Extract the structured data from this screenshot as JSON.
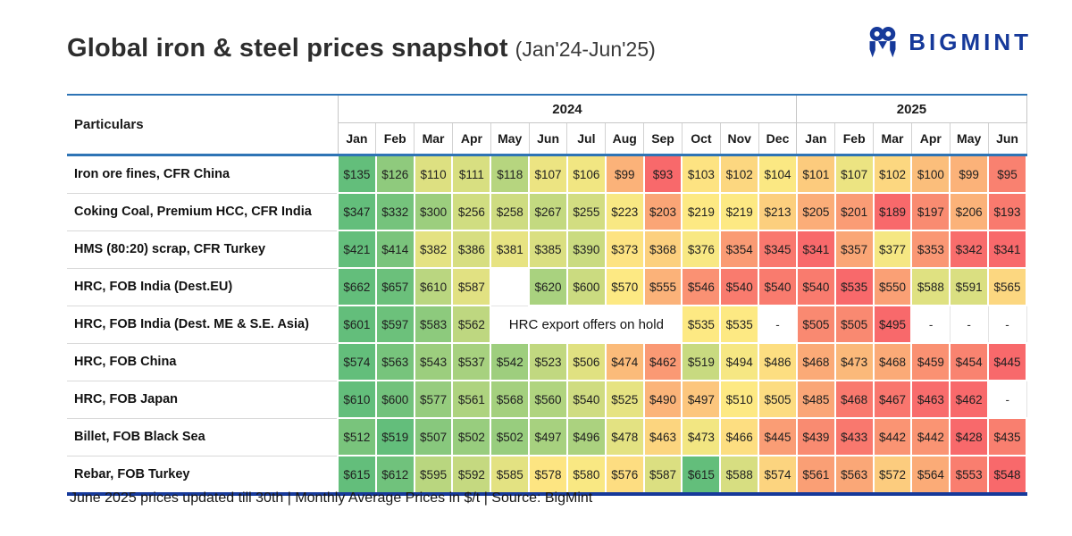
{
  "page": {
    "title": "Global iron & steel prices snapshot",
    "title_suffix": "(Jan'24-Jun'25)",
    "brand": "BIGMINT",
    "footer": "June 2025 prices updated till 30th  | Monthly Average Prices in $/t | Source: BigMint"
  },
  "colors": {
    "brand_blue": "#16399a",
    "header_line_blue": "#2e74b5",
    "scale_min_red": "#f8696b",
    "scale_mid_yellow": "#fde983",
    "scale_max_green": "#63be7b"
  },
  "chart_data": {
    "type": "heatmap",
    "title": "Global iron & steel prices snapshot (Jan'24-Jun'25)",
    "unit": "$/t",
    "value_prefix": "$",
    "columns_label": "Particulars",
    "year_groups": [
      {
        "label": "2024",
        "span": 12
      },
      {
        "label": "2025",
        "span": 6
      }
    ],
    "months": [
      "Jan",
      "Feb",
      "Mar",
      "Apr",
      "May",
      "Jun",
      "Jul",
      "Aug",
      "Sep",
      "Oct",
      "Nov",
      "Dec",
      "Jan",
      "Feb",
      "Mar",
      "Apr",
      "May",
      "Jun"
    ],
    "rows": [
      {
        "label": "Iron ore fines, CFR China",
        "values": [
          135,
          126,
          110,
          111,
          118,
          107,
          106,
          99,
          93,
          103,
          102,
          104,
          101,
          107,
          102,
          100,
          99,
          95
        ]
      },
      {
        "label": "Coking Coal, Premium HCC, CFR India",
        "values": [
          347,
          332,
          300,
          256,
          258,
          267,
          255,
          223,
          203,
          219,
          219,
          213,
          205,
          201,
          189,
          197,
          206,
          193
        ]
      },
      {
        "label": "HMS (80:20) scrap, CFR Turkey",
        "values": [
          421,
          414,
          382,
          386,
          381,
          385,
          390,
          373,
          368,
          376,
          354,
          345,
          341,
          357,
          377,
          353,
          342,
          341
        ]
      },
      {
        "label": "HRC, FOB India (Dest.EU)",
        "values": [
          662,
          657,
          610,
          587,
          null,
          620,
          600,
          570,
          555,
          546,
          540,
          540,
          540,
          535,
          550,
          588,
          591,
          565
        ]
      },
      {
        "label": "HRC, FOB India (Dest. ME & S.E. Asia)",
        "values": [
          601,
          597,
          583,
          562,
          null,
          null,
          null,
          null,
          null,
          535,
          535,
          "-",
          505,
          505,
          495,
          "-",
          "-",
          "-"
        ],
        "merge": {
          "start": 4,
          "span": 5,
          "text": "HRC export offers on hold"
        }
      },
      {
        "label": "HRC, FOB China",
        "values": [
          574,
          563,
          543,
          537,
          542,
          523,
          506,
          474,
          462,
          519,
          494,
          486,
          468,
          473,
          468,
          459,
          454,
          445
        ]
      },
      {
        "label": "HRC, FOB Japan",
        "values": [
          610,
          600,
          577,
          561,
          568,
          560,
          540,
          525,
          490,
          497,
          510,
          505,
          485,
          468,
          467,
          463,
          462,
          "-"
        ]
      },
      {
        "label": "Billet, FOB Black Sea",
        "values": [
          512,
          519,
          507,
          502,
          502,
          497,
          496,
          478,
          463,
          473,
          466,
          445,
          439,
          433,
          442,
          442,
          428,
          435
        ]
      },
      {
        "label": "Rebar, FOB Turkey",
        "values": [
          615,
          612,
          595,
          592,
          585,
          578,
          580,
          576,
          587,
          615,
          588,
          574,
          561,
          563,
          572,
          564,
          553,
          548
        ]
      }
    ],
    "color_scale": {
      "min": "#f8696b",
      "mid": "#fde983",
      "max": "#63be7b",
      "midpoint": "median"
    }
  }
}
